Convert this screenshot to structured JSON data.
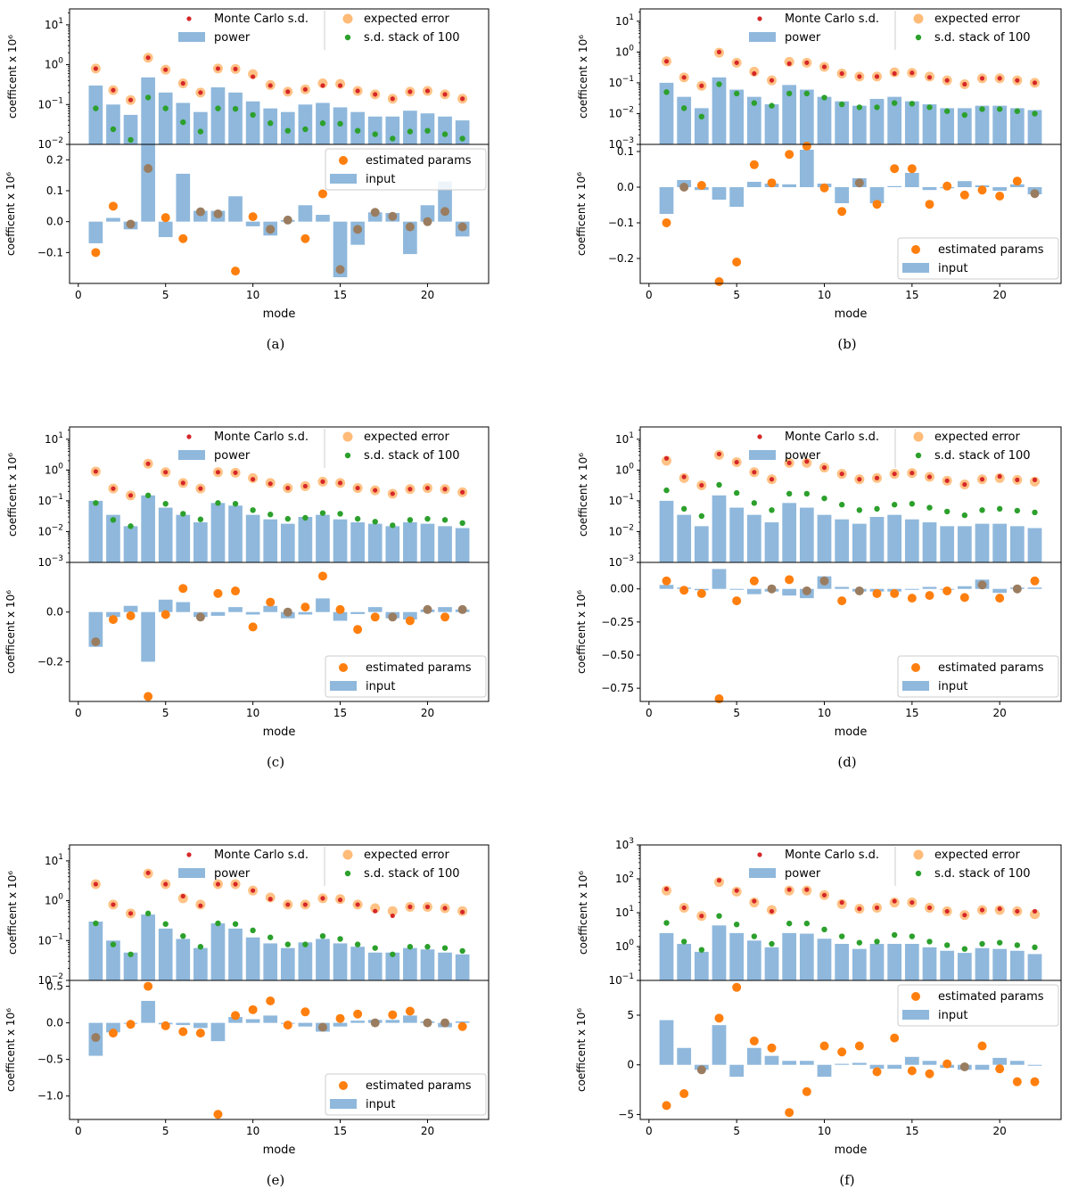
{
  "figure": {
    "panels_order": [
      "a",
      "b",
      "c",
      "d",
      "e",
      "f"
    ]
  },
  "colors": {
    "bar": "#8fb8dc",
    "mc": "#d62728",
    "expected": "#ffbb78",
    "stack": "#2ca02c",
    "estimated": "#ff7f0e",
    "overlap": "#9a7d60"
  },
  "chart_data": [
    {
      "panel": "a",
      "caption": "(a)",
      "type": "bar+scatter",
      "xlabel": "mode",
      "ylabel_top": "coefficent x  10⁶",
      "ylabel_bottom": "coefficent x  10⁶",
      "legend_top": [
        "Monte Carlo s.d.",
        "power",
        "expected error",
        "s.d. stack of 100"
      ],
      "legend_bottom": [
        "estimated params",
        "input"
      ],
      "legend_bottom_loc": "upper right",
      "xlim": [
        -0.5,
        23.5
      ],
      "xticks": [
        0,
        5,
        10,
        15,
        20
      ],
      "top_ylog": [
        -2,
        1.4
      ],
      "top_yticks": [
        -2,
        -1,
        0,
        1
      ],
      "modes": [
        1,
        2,
        3,
        4,
        5,
        6,
        7,
        8,
        9,
        10,
        11,
        12,
        13,
        14,
        15,
        16,
        17,
        18,
        19,
        20,
        21,
        22
      ],
      "power": [
        0.3,
        0.1,
        0.055,
        0.48,
        0.2,
        0.11,
        0.065,
        0.27,
        0.2,
        0.12,
        0.08,
        0.065,
        0.1,
        0.11,
        0.085,
        0.065,
        0.05,
        0.05,
        0.07,
        0.06,
        0.05,
        0.04
      ],
      "expected_error": [
        0.8,
        0.23,
        0.13,
        1.5,
        0.75,
        0.34,
        0.2,
        0.8,
        0.78,
        0.58,
        0.31,
        0.21,
        0.24,
        0.34,
        0.33,
        0.22,
        0.18,
        0.14,
        0.21,
        0.22,
        0.18,
        0.14
      ],
      "monte_carlo_sd": [
        0.8,
        0.23,
        0.13,
        1.5,
        0.75,
        0.34,
        0.2,
        0.8,
        0.78,
        0.5,
        0.3,
        0.21,
        0.24,
        0.3,
        0.3,
        0.22,
        0.18,
        0.14,
        0.21,
        0.22,
        0.18,
        0.14
      ],
      "sd_stack_100": [
        0.08,
        0.024,
        0.013,
        0.15,
        0.08,
        0.036,
        0.021,
        0.08,
        0.078,
        0.055,
        0.034,
        0.022,
        0.024,
        0.034,
        0.033,
        0.022,
        0.018,
        0.014,
        0.021,
        0.022,
        0.018,
        0.014
      ],
      "bottom_ylim": [
        -0.2,
        0.25
      ],
      "bottom_yticks": [
        -0.1,
        0.0,
        0.1,
        0.2
      ],
      "bottom_ticklabels": [
        "−0.1",
        "0.0",
        "0.1",
        "0.2"
      ],
      "input": [
        -0.07,
        0.012,
        -0.025,
        0.25,
        -0.05,
        0.155,
        0.035,
        0.035,
        0.082,
        -0.015,
        -0.045,
        0.005,
        0.053,
        0.022,
        -0.18,
        -0.075,
        0.03,
        0.028,
        -0.105,
        0.053,
        0.13,
        -0.048
      ],
      "estimated_params": [
        -0.1,
        0.05,
        -0.008,
        0.172,
        0.013,
        -0.055,
        0.032,
        0.025,
        -0.16,
        0.016,
        -0.025,
        0.005,
        -0.055,
        0.09,
        -0.155,
        -0.025,
        0.03,
        0.017,
        -0.017,
        0.0,
        0.033,
        -0.017
      ]
    },
    {
      "panel": "b",
      "caption": "(b)",
      "type": "bar+scatter",
      "xlabel": "mode",
      "ylabel_top": "coefficent x  10⁶",
      "ylabel_bottom": "coefficent x  10⁶",
      "legend_top": [
        "Monte Carlo s.d.",
        "power",
        "expected error",
        "s.d. stack of 100"
      ],
      "legend_bottom": [
        "estimated params",
        "input"
      ],
      "legend_bottom_loc": "lower right",
      "xlim": [
        -0.5,
        23.5
      ],
      "xticks": [
        0,
        5,
        10,
        15,
        20
      ],
      "top_ylog": [
        -3,
        1.4
      ],
      "top_yticks": [
        -3,
        -2,
        -1,
        0,
        1
      ],
      "modes": [
        1,
        2,
        3,
        4,
        5,
        6,
        7,
        8,
        9,
        10,
        11,
        12,
        13,
        14,
        15,
        16,
        17,
        18,
        19,
        20,
        21,
        22
      ],
      "power": [
        0.1,
        0.035,
        0.015,
        0.15,
        0.06,
        0.035,
        0.02,
        0.085,
        0.06,
        0.035,
        0.025,
        0.018,
        0.03,
        0.035,
        0.025,
        0.02,
        0.015,
        0.015,
        0.018,
        0.018,
        0.015,
        0.013
      ],
      "expected_error": [
        0.5,
        0.15,
        0.08,
        0.95,
        0.45,
        0.23,
        0.12,
        0.48,
        0.45,
        0.33,
        0.2,
        0.16,
        0.16,
        0.22,
        0.21,
        0.16,
        0.12,
        0.09,
        0.14,
        0.14,
        0.12,
        0.1
      ],
      "monte_carlo_sd": [
        0.5,
        0.15,
        0.08,
        1.0,
        0.45,
        0.2,
        0.12,
        0.42,
        0.45,
        0.33,
        0.2,
        0.16,
        0.16,
        0.2,
        0.21,
        0.15,
        0.12,
        0.09,
        0.14,
        0.14,
        0.12,
        0.1
      ],
      "sd_stack_100": [
        0.05,
        0.015,
        0.008,
        0.09,
        0.045,
        0.022,
        0.018,
        0.045,
        0.045,
        0.033,
        0.02,
        0.016,
        0.016,
        0.022,
        0.021,
        0.016,
        0.012,
        0.009,
        0.014,
        0.014,
        0.012,
        0.01
      ],
      "bottom_ylim": [
        -0.27,
        0.12
      ],
      "bottom_yticks": [
        -0.2,
        -0.1,
        0.0,
        0.1
      ],
      "bottom_ticklabels": [
        "−0.2",
        "−0.1",
        "0.0",
        "0.1"
      ],
      "input": [
        -0.075,
        0.02,
        -0.008,
        -0.035,
        -0.055,
        0.015,
        0.01,
        0.008,
        0.105,
        0.01,
        -0.045,
        0.025,
        -0.045,
        0.003,
        0.04,
        -0.008,
        -0.003,
        0.017,
        0.005,
        -0.01,
        0.008,
        -0.02
      ],
      "estimated_params": [
        -0.1,
        0.0,
        0.005,
        -0.265,
        -0.21,
        0.063,
        0.012,
        0.092,
        0.115,
        -0.002,
        -0.068,
        0.012,
        -0.048,
        0.052,
        0.052,
        -0.048,
        0.003,
        -0.022,
        -0.008,
        -0.025,
        0.017,
        -0.018
      ]
    },
    {
      "panel": "c",
      "caption": "(c)",
      "type": "bar+scatter",
      "xlabel": "mode",
      "ylabel_top": "coefficent x  10⁶",
      "ylabel_bottom": "coefficent x  10⁶",
      "legend_top": [
        "Monte Carlo s.d.",
        "power",
        "expected error",
        "s.d. stack of 100"
      ],
      "legend_bottom": [
        "estimated params",
        "input"
      ],
      "legend_bottom_loc": "lower right",
      "xlim": [
        -0.5,
        23.5
      ],
      "xticks": [
        0,
        5,
        10,
        15,
        20
      ],
      "top_ylog": [
        -3,
        1.4
      ],
      "top_yticks": [
        -3,
        -2,
        -1,
        0,
        1
      ],
      "modes": [
        1,
        2,
        3,
        4,
        5,
        6,
        7,
        8,
        9,
        10,
        11,
        12,
        13,
        14,
        15,
        16,
        17,
        18,
        19,
        20,
        21,
        22
      ],
      "power": [
        0.1,
        0.035,
        0.015,
        0.15,
        0.06,
        0.035,
        0.02,
        0.085,
        0.07,
        0.035,
        0.025,
        0.018,
        0.03,
        0.035,
        0.025,
        0.02,
        0.018,
        0.015,
        0.02,
        0.018,
        0.015,
        0.013
      ],
      "expected_error": [
        0.9,
        0.25,
        0.15,
        1.6,
        0.85,
        0.38,
        0.25,
        0.85,
        0.82,
        0.55,
        0.38,
        0.26,
        0.3,
        0.42,
        0.38,
        0.26,
        0.22,
        0.17,
        0.24,
        0.26,
        0.24,
        0.19
      ],
      "monte_carlo_sd": [
        0.9,
        0.25,
        0.15,
        1.6,
        0.85,
        0.38,
        0.25,
        0.85,
        0.82,
        0.5,
        0.36,
        0.26,
        0.3,
        0.42,
        0.38,
        0.26,
        0.22,
        0.17,
        0.24,
        0.26,
        0.24,
        0.19
      ],
      "sd_stack_100": [
        0.085,
        0.024,
        0.015,
        0.15,
        0.08,
        0.038,
        0.025,
        0.085,
        0.08,
        0.05,
        0.036,
        0.026,
        0.028,
        0.04,
        0.038,
        0.026,
        0.021,
        0.016,
        0.024,
        0.026,
        0.024,
        0.019
      ],
      "bottom_ylim": [
        -0.36,
        0.2
      ],
      "bottom_yticks": [
        -0.2,
        0.0
      ],
      "bottom_ticklabels": [
        "−0.2",
        "0.0"
      ],
      "input": [
        -0.14,
        -0.02,
        0.025,
        -0.2,
        0.05,
        0.04,
        -0.02,
        -0.015,
        0.02,
        -0.01,
        0.025,
        -0.025,
        -0.01,
        0.055,
        -0.035,
        -0.008,
        0.02,
        -0.025,
        -0.03,
        0.01,
        0.02,
        0.01
      ],
      "estimated_params": [
        -0.12,
        -0.03,
        -0.015,
        -0.34,
        -0.01,
        0.095,
        -0.02,
        0.075,
        0.085,
        -0.06,
        0.04,
        0.0,
        0.02,
        0.145,
        0.01,
        -0.07,
        -0.02,
        -0.02,
        -0.035,
        0.01,
        -0.02,
        0.01
      ]
    },
    {
      "panel": "d",
      "caption": "(d)",
      "type": "bar+scatter",
      "xlabel": "mode",
      "ylabel_top": "coefficent x  10⁶",
      "ylabel_bottom": "coefficent x  10⁶",
      "legend_top": [
        "Monte Carlo s.d.",
        "power",
        "expected error",
        "s.d. stack of 100"
      ],
      "legend_bottom": [
        "estimated params",
        "input"
      ],
      "legend_bottom_loc": "lower right",
      "xlim": [
        -0.5,
        23.5
      ],
      "xticks": [
        0,
        5,
        10,
        15,
        20
      ],
      "top_ylog": [
        -3,
        1.4
      ],
      "top_yticks": [
        -3,
        -2,
        -1,
        0,
        1
      ],
      "modes": [
        1,
        2,
        3,
        4,
        5,
        6,
        7,
        8,
        9,
        10,
        11,
        12,
        13,
        14,
        15,
        16,
        17,
        18,
        19,
        20,
        21,
        22
      ],
      "power": [
        0.1,
        0.035,
        0.015,
        0.15,
        0.06,
        0.035,
        0.02,
        0.085,
        0.06,
        0.035,
        0.025,
        0.018,
        0.03,
        0.035,
        0.025,
        0.02,
        0.015,
        0.015,
        0.018,
        0.018,
        0.015,
        0.013
      ],
      "expected_error": [
        2.0,
        0.55,
        0.32,
        3.1,
        1.8,
        0.85,
        0.5,
        1.7,
        1.7,
        1.2,
        0.75,
        0.5,
        0.55,
        0.75,
        0.8,
        0.6,
        0.45,
        0.34,
        0.5,
        0.55,
        0.48,
        0.42
      ],
      "monte_carlo_sd": [
        2.4,
        0.6,
        0.32,
        3.3,
        1.8,
        0.85,
        0.5,
        1.7,
        1.9,
        1.2,
        0.75,
        0.5,
        0.55,
        0.75,
        0.8,
        0.6,
        0.45,
        0.34,
        0.5,
        0.62,
        0.48,
        0.48
      ],
      "sd_stack_100": [
        0.22,
        0.055,
        0.032,
        0.33,
        0.18,
        0.085,
        0.05,
        0.17,
        0.17,
        0.12,
        0.075,
        0.05,
        0.055,
        0.075,
        0.08,
        0.06,
        0.045,
        0.034,
        0.05,
        0.055,
        0.048,
        0.042
      ],
      "bottom_ylim": [
        -0.85,
        0.2
      ],
      "bottom_yticks": [
        -0.75,
        -0.5,
        -0.25,
        0.0
      ],
      "bottom_ticklabels": [
        "−0.75",
        "−0.50",
        "−0.25",
        "0.00"
      ],
      "input": [
        0.03,
        0.01,
        -0.01,
        0.15,
        -0.005,
        -0.04,
        -0.02,
        -0.05,
        -0.07,
        0.095,
        0.015,
        -0.02,
        -0.02,
        -0.02,
        0.0,
        0.015,
        0.0,
        0.02,
        0.07,
        -0.03,
        0.01,
        0.01
      ],
      "estimated_params": [
        0.06,
        -0.01,
        -0.035,
        -0.83,
        -0.09,
        0.06,
        0.0,
        0.07,
        -0.015,
        0.06,
        -0.09,
        -0.015,
        -0.035,
        -0.035,
        -0.07,
        -0.05,
        -0.015,
        -0.065,
        0.03,
        -0.07,
        0.0,
        0.06
      ]
    },
    {
      "panel": "e",
      "caption": "(e)",
      "type": "bar+scatter",
      "xlabel": "mode",
      "ylabel_top": "coefficent x  10⁶",
      "ylabel_bottom": "coefficent x  10⁶",
      "legend_top": [
        "Monte Carlo s.d.",
        "power",
        "expected error",
        "s.d. stack of 100"
      ],
      "legend_bottom": [
        "estimated params",
        "input"
      ],
      "legend_bottom_loc": "lower right",
      "xlim": [
        -0.5,
        23.5
      ],
      "xticks": [
        0,
        5,
        10,
        15,
        20
      ],
      "top_ylog": [
        -2,
        1.4
      ],
      "top_yticks": [
        -2,
        -1,
        0,
        1
      ],
      "modes": [
        1,
        2,
        3,
        4,
        5,
        6,
        7,
        8,
        9,
        10,
        11,
        12,
        13,
        14,
        15,
        16,
        17,
        18,
        19,
        20,
        21,
        22
      ],
      "power": [
        0.3,
        0.1,
        0.05,
        0.45,
        0.2,
        0.11,
        0.065,
        0.27,
        0.2,
        0.12,
        0.085,
        0.065,
        0.09,
        0.11,
        0.085,
        0.07,
        0.05,
        0.05,
        0.065,
        0.06,
        0.05,
        0.045
      ],
      "expected_error": [
        2.6,
        0.8,
        0.48,
        4.8,
        2.6,
        1.15,
        0.8,
        2.6,
        2.6,
        1.8,
        1.2,
        0.8,
        0.8,
        1.15,
        1.1,
        0.8,
        0.65,
        0.55,
        0.7,
        0.7,
        0.65,
        0.55
      ],
      "monte_carlo_sd": [
        2.6,
        0.8,
        0.48,
        5.0,
        2.6,
        1.3,
        0.75,
        2.6,
        2.6,
        1.8,
        1.1,
        0.8,
        0.8,
        1.15,
        1.05,
        0.8,
        0.55,
        0.42,
        0.7,
        0.7,
        0.65,
        0.52
      ],
      "sd_stack_100": [
        0.27,
        0.08,
        0.045,
        0.48,
        0.26,
        0.13,
        0.07,
        0.27,
        0.26,
        0.18,
        0.12,
        0.08,
        0.08,
        0.13,
        0.11,
        0.08,
        0.065,
        0.045,
        0.07,
        0.07,
        0.065,
        0.055
      ],
      "bottom_ylim": [
        -1.32,
        0.58
      ],
      "bottom_yticks": [
        -1.0,
        -0.5,
        0.0,
        0.5
      ],
      "bottom_ticklabels": [
        "−1.0",
        "−0.5",
        "0.0",
        "0.5"
      ],
      "input": [
        -0.45,
        -0.13,
        0.0,
        0.3,
        -0.02,
        -0.03,
        -0.07,
        -0.25,
        0.08,
        0.05,
        0.1,
        0.0,
        -0.05,
        -0.12,
        -0.05,
        0.03,
        0.04,
        0.04,
        0.1,
        0.02,
        -0.06,
        0.02
      ],
      "estimated_params": [
        -0.2,
        -0.14,
        -0.02,
        0.5,
        -0.04,
        -0.12,
        -0.14,
        -1.25,
        0.1,
        0.18,
        0.3,
        -0.03,
        0.15,
        -0.06,
        0.06,
        0.12,
        0.0,
        0.11,
        0.16,
        0.0,
        0.0,
        -0.05
      ]
    },
    {
      "panel": "f",
      "caption": "(f)",
      "type": "bar+scatter",
      "xlabel": "mode",
      "ylabel_top": "coefficent x  10⁶",
      "ylabel_bottom": "coefficent x  10⁶",
      "legend_top": [
        "Monte Carlo s.d.",
        "power",
        "expected error",
        "s.d. stack of 100"
      ],
      "legend_bottom": [
        "estimated params",
        "input"
      ],
      "legend_bottom_loc": "upper right",
      "xlim": [
        -0.5,
        23.5
      ],
      "xticks": [
        0,
        5,
        10,
        15,
        20
      ],
      "top_ylog": [
        -1,
        3
      ],
      "top_yticks": [
        -1,
        0,
        1,
        2,
        3
      ],
      "modes": [
        1,
        2,
        3,
        4,
        5,
        6,
        7,
        8,
        9,
        10,
        11,
        12,
        13,
        14,
        15,
        16,
        17,
        18,
        19,
        20,
        21,
        22
      ],
      "power": [
        2.5,
        1.2,
        0.7,
        4.2,
        2.5,
        1.5,
        0.95,
        2.5,
        2.4,
        1.7,
        1.2,
        0.85,
        1.2,
        1.2,
        1.2,
        0.95,
        0.75,
        0.65,
        0.9,
        0.85,
        0.75,
        0.6
      ],
      "expected_error": [
        45,
        14,
        8,
        80,
        42,
        20,
        12,
        45,
        45,
        33,
        18,
        13,
        14,
        20,
        20,
        14,
        11,
        8.5,
        12,
        12,
        11,
        9
      ],
      "monte_carlo_sd": [
        50,
        14,
        8,
        90,
        45,
        22,
        11,
        48,
        48,
        33,
        20,
        13,
        14,
        22,
        20,
        14,
        11,
        8.5,
        12,
        13,
        11,
        11
      ],
      "sd_stack_100": [
        5,
        1.4,
        0.8,
        8,
        4.5,
        2,
        1.2,
        4.8,
        4.8,
        3.2,
        2,
        1.3,
        1.4,
        2.2,
        2,
        1.4,
        1.1,
        0.85,
        1.2,
        1.3,
        1.1,
        0.95
      ],
      "bottom_ylim": [
        -5.5,
        8.5
      ],
      "bottom_yticks": [
        -5,
        0,
        5
      ],
      "bottom_ticklabels": [
        "−5",
        "0",
        "5"
      ],
      "input": [
        4.5,
        1.7,
        -0.5,
        4.0,
        -1.2,
        1.7,
        0.9,
        0.4,
        0.4,
        -1.2,
        0.1,
        0.2,
        -0.4,
        -0.4,
        0.8,
        0.4,
        -0.3,
        -0.5,
        -0.5,
        0.7,
        0.4,
        0.0
      ],
      "estimated_params": [
        -4.1,
        -2.9,
        -0.5,
        4.7,
        7.8,
        2.4,
        1.7,
        -4.8,
        -2.7,
        1.9,
        1.3,
        1.9,
        -0.7,
        2.7,
        -0.6,
        -0.9,
        0.1,
        -0.2,
        1.9,
        -0.4,
        -1.7,
        -1.7
      ]
    }
  ]
}
